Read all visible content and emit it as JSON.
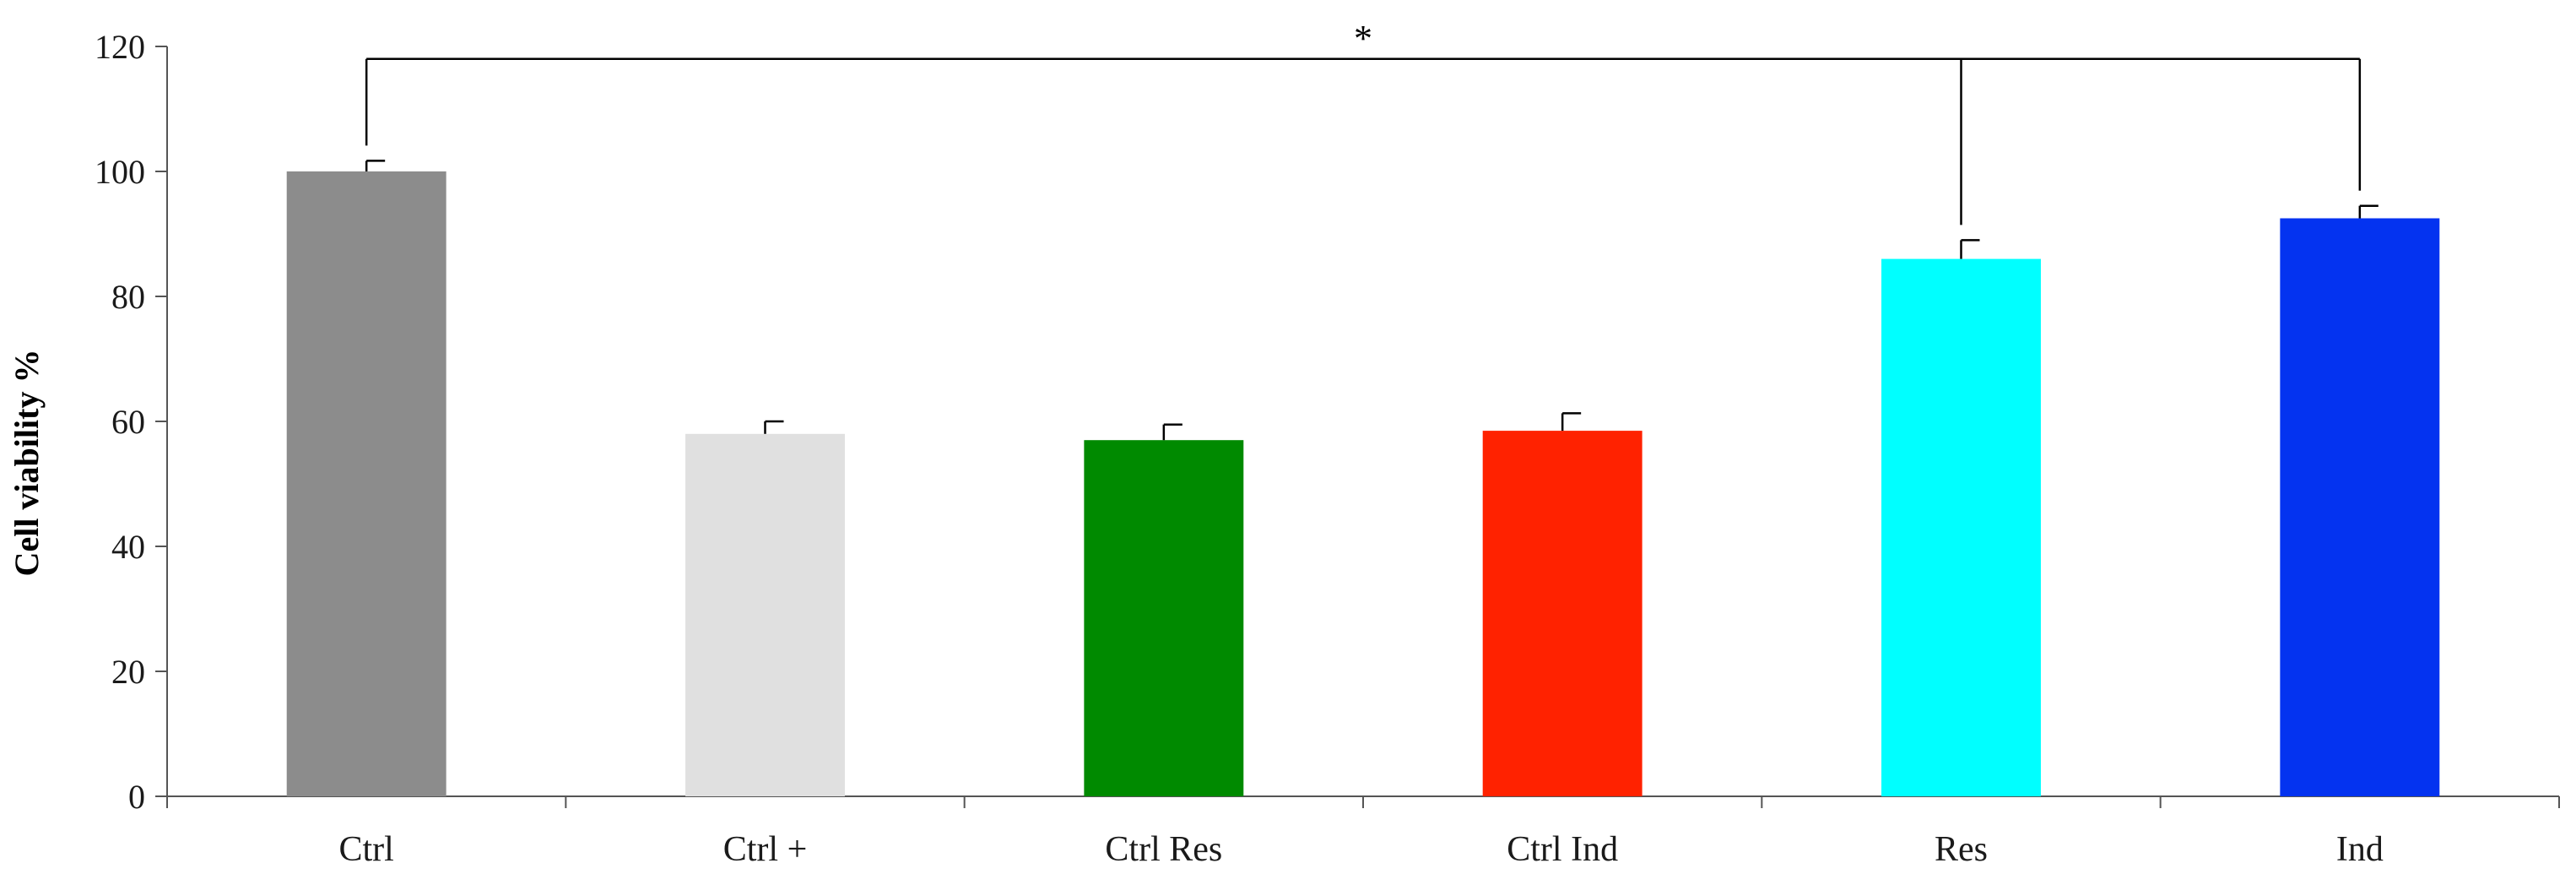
{
  "chart_data": {
    "type": "bar",
    "title": "",
    "xlabel": "",
    "ylabel": "Cell viability %",
    "ylim": [
      0,
      120
    ],
    "yticks": [
      0,
      20,
      40,
      60,
      80,
      100,
      120
    ],
    "categories": [
      "Ctrl",
      "Ctrl +",
      "Ctrl Res",
      "Ctrl Ind",
      "Res",
      "Ind"
    ],
    "values": [
      100,
      58,
      57,
      58.5,
      86,
      92.5
    ],
    "errors": [
      1.7,
      2.0,
      2.5,
      2.8,
      3.0,
      2.0
    ],
    "colors": [
      "#8c8c8c",
      "#e0e0e0",
      "#008a00",
      "#ff2200",
      "#00ffff",
      "#0433f0"
    ],
    "grid": false,
    "significance": {
      "label": "*",
      "from": "Ctrl",
      "to": [
        "Res",
        "Ind"
      ]
    }
  }
}
